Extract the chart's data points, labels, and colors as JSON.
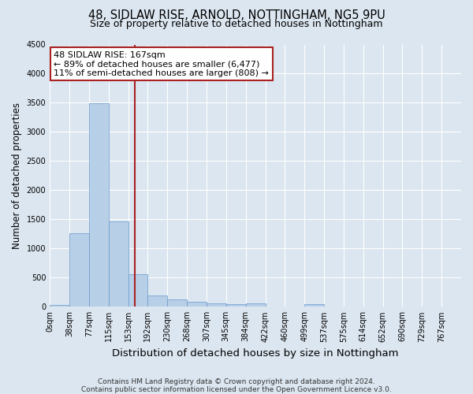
{
  "title1": "48, SIDLAW RISE, ARNOLD, NOTTINGHAM, NG5 9PU",
  "title2": "Size of property relative to detached houses in Nottingham",
  "xlabel": "Distribution of detached houses by size in Nottingham",
  "ylabel": "Number of detached properties",
  "footnote": "Contains HM Land Registry data © Crown copyright and database right 2024.\nContains public sector information licensed under the Open Government Licence v3.0.",
  "bin_labels": [
    "0sqm",
    "38sqm",
    "77sqm",
    "115sqm",
    "153sqm",
    "192sqm",
    "230sqm",
    "268sqm",
    "307sqm",
    "345sqm",
    "384sqm",
    "422sqm",
    "460sqm",
    "499sqm",
    "537sqm",
    "575sqm",
    "614sqm",
    "652sqm",
    "690sqm",
    "729sqm",
    "767sqm"
  ],
  "bar_values": [
    30,
    1260,
    3490,
    1470,
    560,
    200,
    120,
    80,
    60,
    50,
    55,
    0,
    0,
    40,
    0,
    0,
    0,
    0,
    0,
    0,
    0
  ],
  "bin_edges": [
    0,
    38,
    77,
    115,
    153,
    192,
    230,
    268,
    307,
    345,
    384,
    422,
    460,
    499,
    537,
    575,
    614,
    652,
    690,
    729,
    767
  ],
  "property_size": 167,
  "annotation_text": "48 SIDLAW RISE: 167sqm\n← 89% of detached houses are smaller (6,477)\n11% of semi-detached houses are larger (808) →",
  "bar_color": "#b8cfe8",
  "bar_edge_color": "#6699cc",
  "line_color": "#aa2222",
  "box_edge_color": "#aa2222",
  "annotation_fontsize": 8,
  "background_color": "#dce6f0",
  "ylim": [
    0,
    4500
  ],
  "title1_fontsize": 10.5,
  "title2_fontsize": 9,
  "xlabel_fontsize": 9.5,
  "ylabel_fontsize": 8.5,
  "tick_fontsize": 7,
  "footnote_fontsize": 6.5
}
